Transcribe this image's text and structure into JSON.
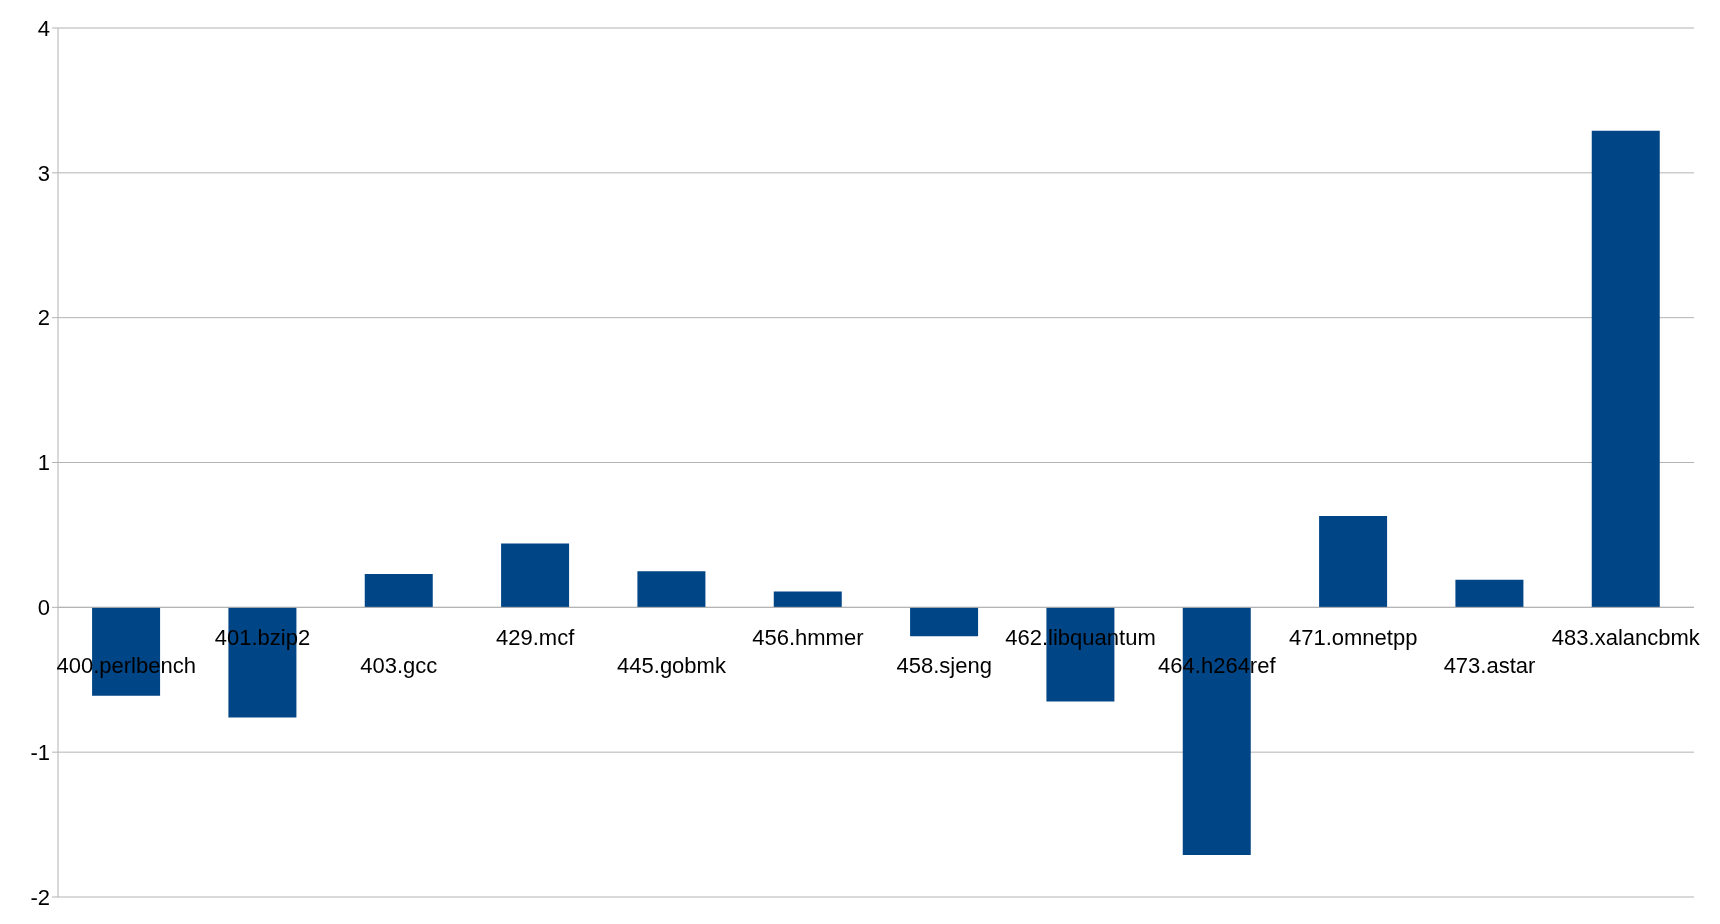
{
  "chart_data": {
    "type": "bar",
    "categories": [
      "400.perlbench",
      "401.bzip2",
      "403.gcc",
      "429.mcf",
      "445.gobmk",
      "456.hmmer",
      "458.sjeng",
      "462.libquantum",
      "464.h264ref",
      "471.omnetpp",
      "473.astar",
      "483.xalancbmk"
    ],
    "values": [
      -0.61,
      -0.76,
      0.23,
      0.44,
      0.25,
      0.11,
      -0.2,
      -0.65,
      -1.71,
      0.63,
      0.19,
      3.29
    ],
    "color": "#004586",
    "ylim": [
      -2,
      4
    ],
    "yticks": [
      -2,
      -1,
      0,
      1,
      2,
      3,
      4
    ],
    "grid": "y"
  }
}
